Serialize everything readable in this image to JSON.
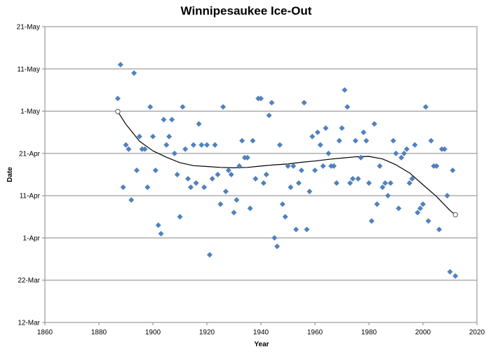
{
  "chart_data": {
    "type": "scatter",
    "title": "Winnipesaukee Ice-Out",
    "xlabel": "Year",
    "ylabel": "Date",
    "xlim": [
      1860,
      2020
    ],
    "x_ticks": [
      1860,
      1880,
      1900,
      1920,
      1940,
      1960,
      1980,
      2000,
      2020
    ],
    "y_axis_unit": "day of year",
    "ylim": [
      71,
      141
    ],
    "y_ticks": [
      {
        "value": 71,
        "label": "12-Mar"
      },
      {
        "value": 81,
        "label": "22-Mar"
      },
      {
        "value": 91,
        "label": "1-Apr"
      },
      {
        "value": 101,
        "label": "11-Apr"
      },
      {
        "value": 111,
        "label": "21-Apr"
      },
      {
        "value": 121,
        "label": "1-May"
      },
      {
        "value": 131,
        "label": "11-May"
      },
      {
        "value": 141,
        "label": "21-May"
      }
    ],
    "grid": {
      "horizontal": true,
      "vertical": false
    },
    "marker_color": "#4F81BD",
    "trend_color": "#000000",
    "series": [
      {
        "marker": "diamond",
        "points": [
          [
            1887,
            124
          ],
          [
            1888,
            132
          ],
          [
            1889,
            103
          ],
          [
            1890,
            113
          ],
          [
            1891,
            112
          ],
          [
            1892,
            100
          ],
          [
            1893,
            130
          ],
          [
            1894,
            107
          ],
          [
            1895,
            115
          ],
          [
            1896,
            112
          ],
          [
            1897,
            112
          ],
          [
            1898,
            103
          ],
          [
            1899,
            122
          ],
          [
            1900,
            115
          ],
          [
            1901,
            107
          ],
          [
            1902,
            94
          ],
          [
            1903,
            92
          ],
          [
            1904,
            119
          ],
          [
            1905,
            113
          ],
          [
            1906,
            115
          ],
          [
            1907,
            119
          ],
          [
            1908,
            111
          ],
          [
            1909,
            106
          ],
          [
            1910,
            96
          ],
          [
            1911,
            122
          ],
          [
            1912,
            112
          ],
          [
            1913,
            105
          ],
          [
            1914,
            103
          ],
          [
            1915,
            113
          ],
          [
            1916,
            104
          ],
          [
            1917,
            118
          ],
          [
            1918,
            113
          ],
          [
            1919,
            103
          ],
          [
            1920,
            113
          ],
          [
            1921,
            87
          ],
          [
            1922,
            105
          ],
          [
            1923,
            113
          ],
          [
            1924,
            106
          ],
          [
            1925,
            99
          ],
          [
            1926,
            122
          ],
          [
            1927,
            102
          ],
          [
            1928,
            107
          ],
          [
            1929,
            106
          ],
          [
            1930,
            97
          ],
          [
            1931,
            100
          ],
          [
            1932,
            108
          ],
          [
            1933,
            114
          ],
          [
            1934,
            110
          ],
          [
            1935,
            110
          ],
          [
            1936,
            98
          ],
          [
            1937,
            114
          ],
          [
            1938,
            105
          ],
          [
            1939,
            124
          ],
          [
            1940,
            124
          ],
          [
            1941,
            104
          ],
          [
            1942,
            106
          ],
          [
            1943,
            120
          ],
          [
            1944,
            123
          ],
          [
            1945,
            91
          ],
          [
            1946,
            89
          ],
          [
            1947,
            113
          ],
          [
            1948,
            99
          ],
          [
            1949,
            96
          ],
          [
            1950,
            108
          ],
          [
            1951,
            103
          ],
          [
            1952,
            108
          ],
          [
            1953,
            93
          ],
          [
            1954,
            104
          ],
          [
            1955,
            107
          ],
          [
            1956,
            123
          ],
          [
            1957,
            93
          ],
          [
            1958,
            102
          ],
          [
            1959,
            115
          ],
          [
            1960,
            107
          ],
          [
            1961,
            116
          ],
          [
            1962,
            113
          ],
          [
            1963,
            108
          ],
          [
            1964,
            117
          ],
          [
            1965,
            111
          ],
          [
            1966,
            108
          ],
          [
            1967,
            108
          ],
          [
            1968,
            104
          ],
          [
            1969,
            114
          ],
          [
            1970,
            117
          ],
          [
            1971,
            126
          ],
          [
            1972,
            122
          ],
          [
            1973,
            104
          ],
          [
            1974,
            105
          ],
          [
            1975,
            114
          ],
          [
            1976,
            105
          ],
          [
            1977,
            110
          ],
          [
            1978,
            116
          ],
          [
            1979,
            114
          ],
          [
            1980,
            104
          ],
          [
            1981,
            95
          ],
          [
            1982,
            118
          ],
          [
            1983,
            99
          ],
          [
            1984,
            108
          ],
          [
            1985,
            103
          ],
          [
            1986,
            104
          ],
          [
            1987,
            101
          ],
          [
            1988,
            104
          ],
          [
            1989,
            114
          ],
          [
            1990,
            111
          ],
          [
            1991,
            98
          ],
          [
            1992,
            110
          ],
          [
            1993,
            111
          ],
          [
            1994,
            112
          ],
          [
            1995,
            104
          ],
          [
            1996,
            105
          ],
          [
            1997,
            113
          ],
          [
            1998,
            97
          ],
          [
            1999,
            98
          ],
          [
            2000,
            99
          ],
          [
            2001,
            122
          ],
          [
            2002,
            95
          ],
          [
            2003,
            114
          ],
          [
            2004,
            108
          ],
          [
            2005,
            108
          ],
          [
            2006,
            93
          ],
          [
            2007,
            112
          ],
          [
            2008,
            112
          ],
          [
            2009,
            101
          ],
          [
            2010,
            83
          ],
          [
            2011,
            107
          ],
          [
            2012,
            82
          ]
        ]
      }
    ],
    "trendline": {
      "type": "polynomial",
      "points": [
        [
          1887,
          120.9
        ],
        [
          1890,
          117.9
        ],
        [
          1895,
          113.9
        ],
        [
          1900,
          111.6
        ],
        [
          1905,
          110.1
        ],
        [
          1910,
          108.8
        ],
        [
          1915,
          108.1
        ],
        [
          1920,
          107.9
        ],
        [
          1925,
          107.7
        ],
        [
          1930,
          107.6
        ],
        [
          1935,
          107.7
        ],
        [
          1940,
          108.0
        ],
        [
          1945,
          108.3
        ],
        [
          1950,
          108.5
        ],
        [
          1955,
          108.9
        ],
        [
          1960,
          109.2
        ],
        [
          1965,
          109.6
        ],
        [
          1970,
          109.9
        ],
        [
          1975,
          110.2
        ],
        [
          1980,
          110.3
        ],
        [
          1985,
          109.7
        ],
        [
          1990,
          108.3
        ],
        [
          1995,
          106.4
        ],
        [
          2000,
          103.6
        ],
        [
          2005,
          100.8
        ],
        [
          2010,
          97.5
        ],
        [
          2012,
          96.5
        ]
      ],
      "endpoints": [
        [
          1887,
          120.9
        ],
        [
          2012,
          96.5
        ]
      ]
    }
  }
}
